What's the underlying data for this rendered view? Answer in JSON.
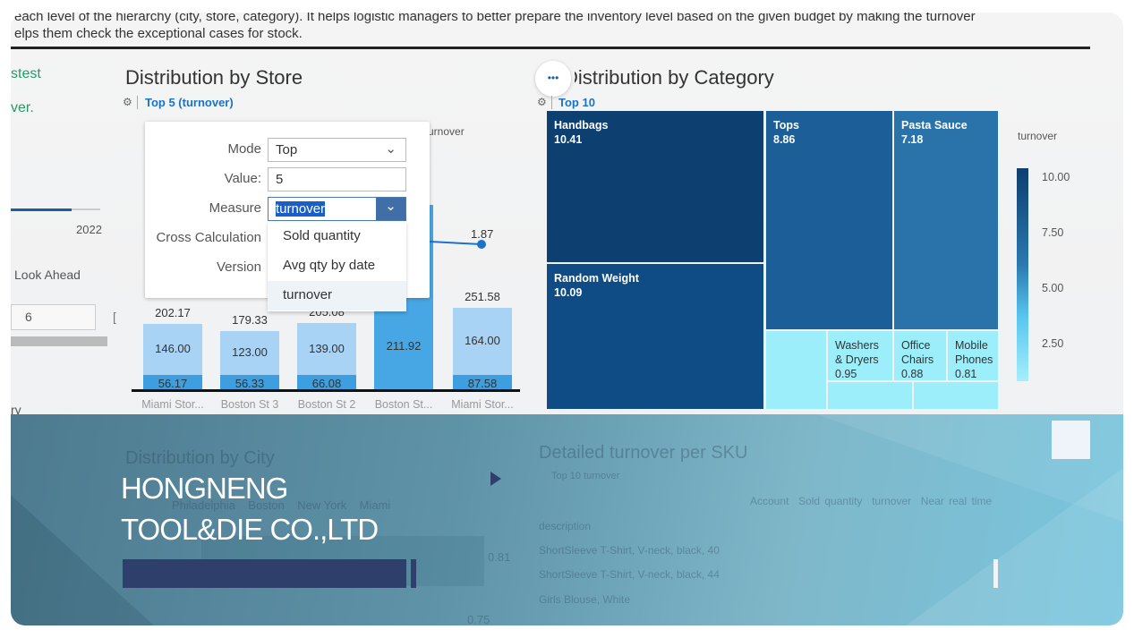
{
  "intro": {
    "line1": "each level of the hierarchy (city, store, category). It helps logistic managers to better prepare the inventory level based on the given budget by making the turnover",
    "line2": "elps them check the exceptional cases for stock."
  },
  "left_panel": {
    "text1": "stest",
    "text2": "ver.",
    "slider_year": "2022",
    "look_ahead_label": "Look Ahead",
    "look_ahead_value": "6",
    "bracket": "[",
    "bottom_text": "ry"
  },
  "store_chart": {
    "title": "Distribution by Store",
    "filter": "Top 5 (turnover)",
    "legend_partial": "urnover",
    "line_label": "1.87"
  },
  "popover": {
    "mode_label": "Mode",
    "mode_value": "Top",
    "value_label": "Value:",
    "value": "5",
    "measure_label": "Measure",
    "measure_value": "turnover",
    "cross_calc_label": "Cross Calculation",
    "version_label": "Version",
    "options": [
      "Sold quantity",
      "Avg qty by date",
      "turnover"
    ],
    "selected_option": "turnover"
  },
  "chart_data": [
    {
      "type": "bar",
      "stacked": true,
      "categories": [
        "Miami Stor...",
        "Boston St 3",
        "Boston St 2",
        "Boston St...",
        "Miami Stor..."
      ],
      "series": [
        {
          "values": [
            56.17,
            56.33,
            66.08,
            211.92,
            87.58
          ]
        },
        {
          "values": [
            146.0,
            123.0,
            139.0,
            null,
            164.0
          ]
        }
      ],
      "totals": [
        "202.17",
        "179.33",
        "205.08",
        "",
        "251.58"
      ],
      "line_point": 1.87
    },
    {
      "type": "treemap",
      "title": "Distribution by Category",
      "filter": "Top 10",
      "legend_title": "turnover",
      "legend_ticks": [
        "10.00",
        "7.50",
        "5.00",
        "2.50"
      ],
      "items": [
        {
          "name": "Handbags",
          "value": "10.41"
        },
        {
          "name": "Random Weight",
          "value": "10.09"
        },
        {
          "name": "Tops",
          "value": "8.86"
        },
        {
          "name": "Pasta Sauce",
          "value": "7.18"
        },
        {
          "name": "Washers & Dryers",
          "value": "0.95"
        },
        {
          "name": "Office Chairs",
          "value": "0.88"
        },
        {
          "name": "Mobile Phones",
          "value": "0.81"
        }
      ]
    }
  ],
  "overlay": {
    "company_line1": "HONGNENG",
    "company_line2": "TOOL&DIE CO.,LTD",
    "ghost": {
      "city_title": "Distribution by City",
      "legend": [
        "Philadelphia",
        "Boston",
        "New York",
        "Miami"
      ],
      "sku_title": "Detailed turnover per SKU",
      "sku_filter": "Top 10 turnover",
      "columns": [
        "Account",
        "Sold quantity",
        "turnover",
        "Near real time"
      ],
      "row_header": "description",
      "rows": [
        "ShortSleeve T-Shirt, V-neck, black, 40",
        "ShortSleeve T-Shirt, V-neck, black, 44",
        "Girls Blouse, White"
      ],
      "values": [
        "0.81",
        "0.75"
      ]
    }
  },
  "colors": {
    "accent": "#1a73c8",
    "treemap_dark": "#0d3f70",
    "treemap_light": "#9beefa",
    "brand_bar": "#2f3f6c"
  }
}
